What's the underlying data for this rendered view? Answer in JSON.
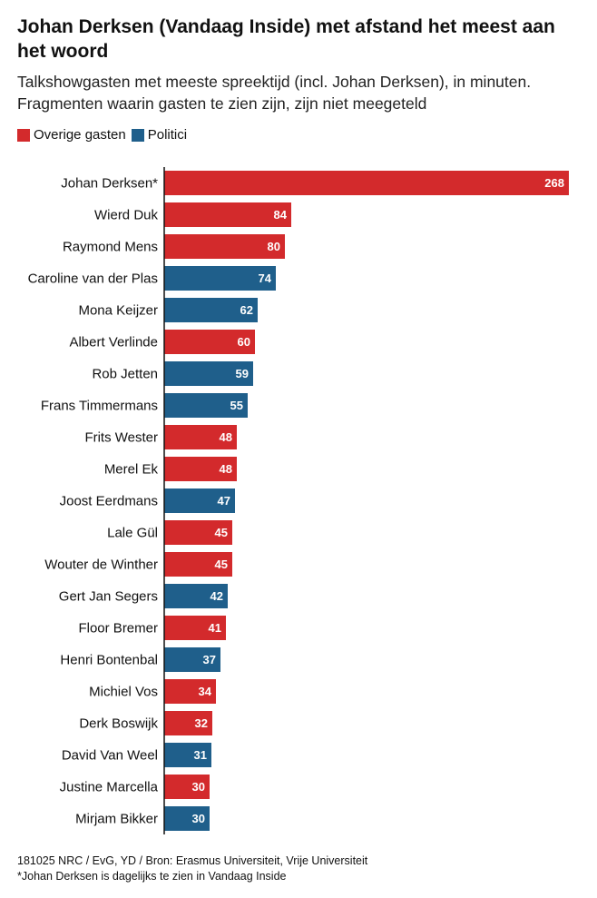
{
  "title": "Johan Derksen (Vandaag Inside) met afstand het meest aan het woord",
  "subtitle": "Talkshowgasten met meeste spreektijd (incl. Johan Derksen), in minuten. Fragmenten waarin gasten te zien zijn, zijn niet meegeteld",
  "legend": [
    {
      "label": "Overige gasten",
      "color": "#d32a2c"
    },
    {
      "label": "Politici",
      "color": "#1f5f8b"
    }
  ],
  "colors": {
    "overige": "#d32a2c",
    "politici": "#1f5f8b",
    "axis": "#111111"
  },
  "chart_data": {
    "type": "bar",
    "orientation": "horizontal",
    "title": "Johan Derksen (Vandaag Inside) met afstand het meest aan het woord",
    "xlabel": "",
    "ylabel": "",
    "xlim": [
      0,
      268
    ],
    "grid": false,
    "legend_position": "top-left",
    "categories": [
      "Johan Derksen*",
      "Wierd Duk",
      "Raymond Mens",
      "Caroline van der Plas",
      "Mona Keijzer",
      "Albert Verlinde",
      "Rob Jetten",
      "Frans Timmermans",
      "Frits Wester",
      "Merel Ek",
      "Joost Eerdmans",
      "Lale Gül",
      "Wouter de Winther",
      "Gert Jan Segers",
      "Floor Bremer",
      "Henri Bontenbal",
      "Michiel Vos",
      "Derk Boswijk",
      "David Van Weel",
      "Justine Marcella",
      "Mirjam Bikker"
    ],
    "values": [
      268,
      84,
      80,
      74,
      62,
      60,
      59,
      55,
      48,
      48,
      47,
      45,
      45,
      42,
      41,
      37,
      34,
      32,
      31,
      30,
      30
    ],
    "groups": [
      "Overige gasten",
      "Overige gasten",
      "Overige gasten",
      "Politici",
      "Politici",
      "Overige gasten",
      "Politici",
      "Politici",
      "Overige gasten",
      "Overige gasten",
      "Politici",
      "Overige gasten",
      "Overige gasten",
      "Politici",
      "Overige gasten",
      "Politici",
      "Overige gasten",
      "Overige gasten",
      "Politici",
      "Overige gasten",
      "Politici"
    ]
  },
  "footer": {
    "source": "181025 NRC / EvG, YD / Bron: Erasmus Universiteit, Vrije Universiteit",
    "note": "*Johan Derksen is dagelijks te zien in Vandaag Inside"
  }
}
